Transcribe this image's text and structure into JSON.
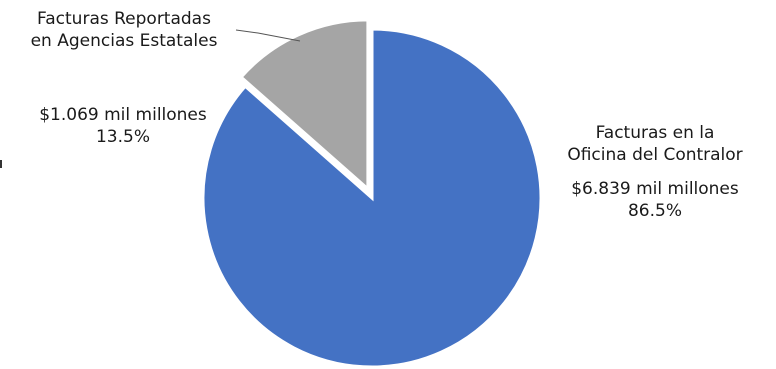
{
  "chart_data": {
    "type": "pie",
    "title": "",
    "slices": [
      {
        "label_lines": [
          "Facturas en la",
          "Oficina del Contralor"
        ],
        "amount": "$6.839 mil millones",
        "percent_label": "86.5%",
        "value": 86.5,
        "color": "#4472C4"
      },
      {
        "label_lines": [
          "Facturas Reportadas",
          "en Agencias Estatales"
        ],
        "amount": "$1.069 mil millones",
        "percent_label": "13.5%",
        "value": 13.5,
        "color": "#A5A5A5"
      }
    ],
    "start_angle_deg": 0,
    "exploded_slice_index": 1
  }
}
